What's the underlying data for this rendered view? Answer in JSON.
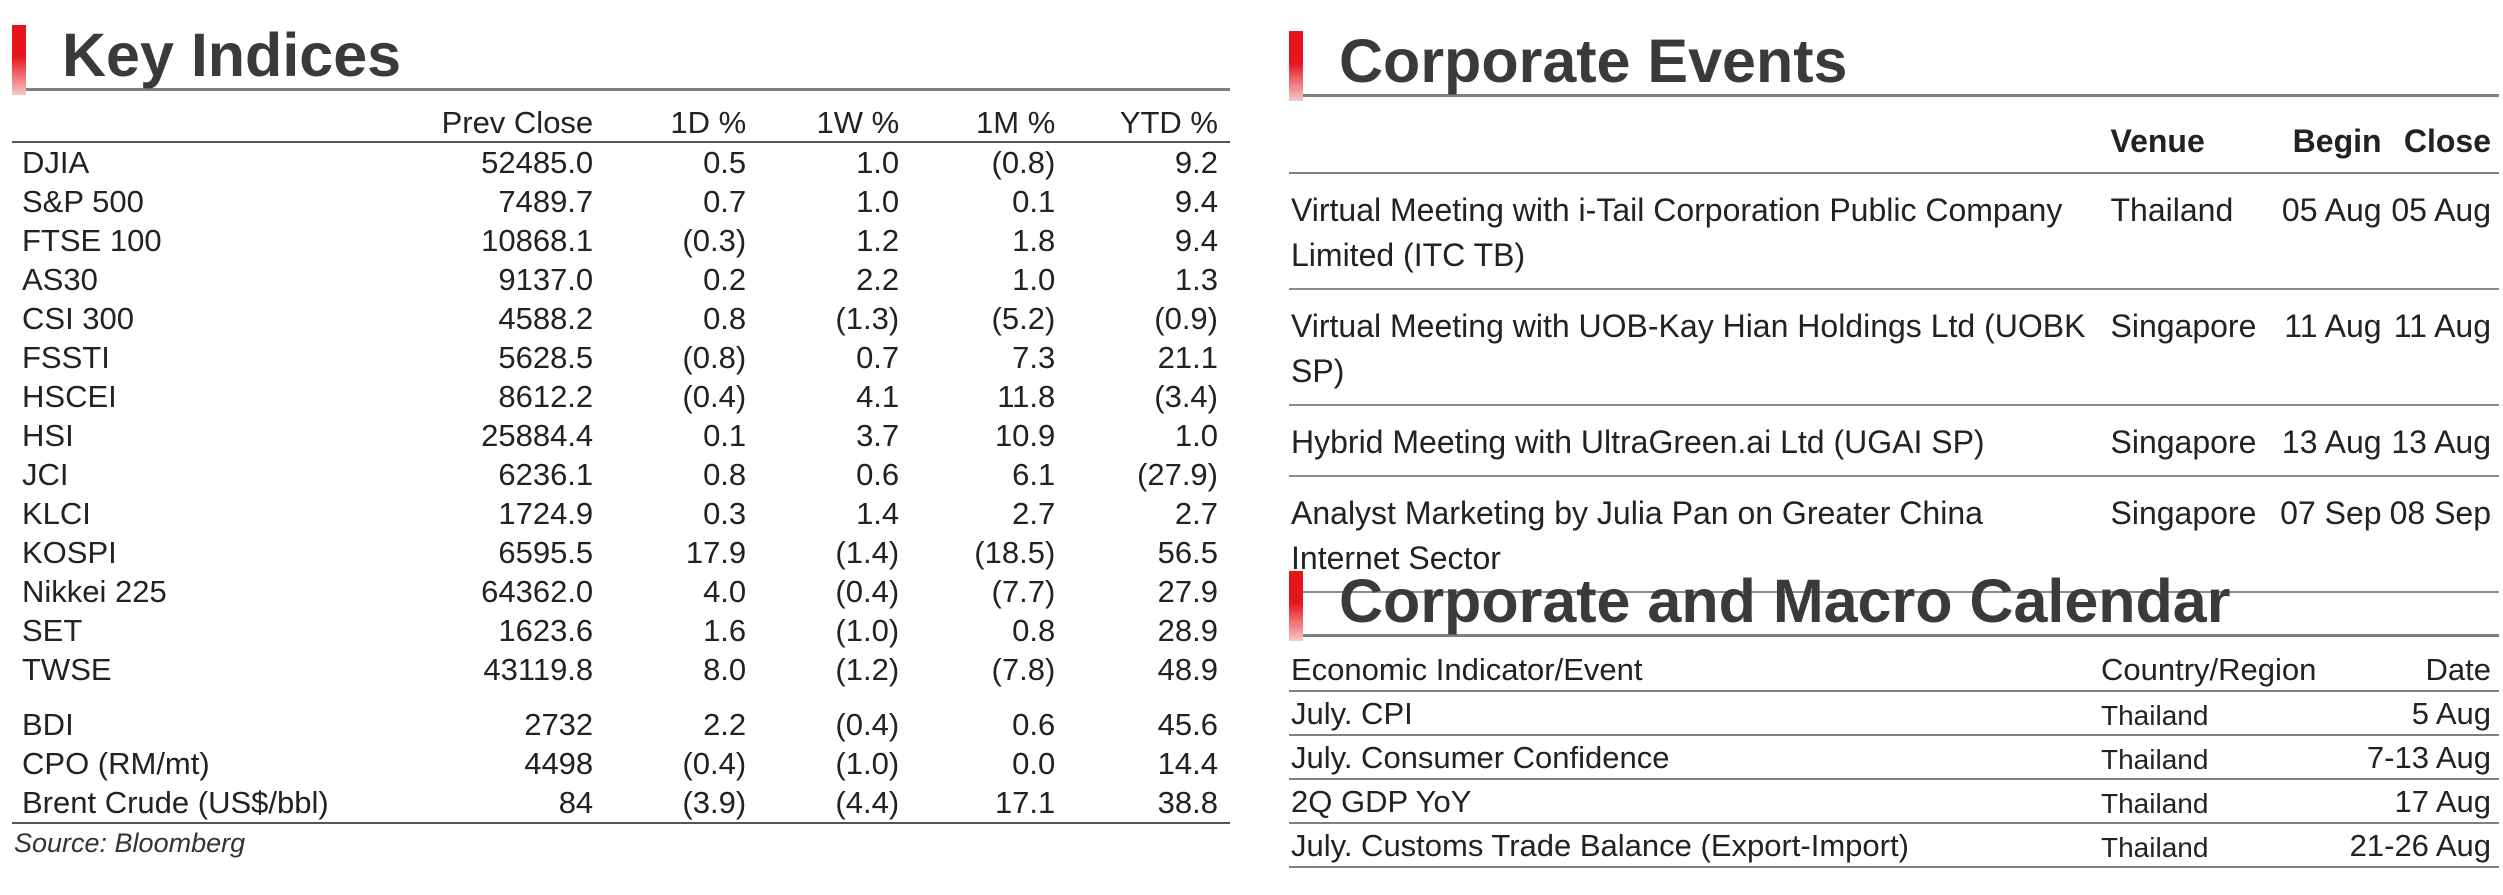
{
  "key_indices": {
    "title": "Key Indices",
    "columns": [
      "",
      "Prev Close",
      "1D %",
      "1W %",
      "1M %",
      "YTD %"
    ],
    "rows": [
      {
        "name": "DJIA",
        "prev_close": "52485.0",
        "d1": "0.5",
        "w1": "1.0",
        "m1": "(0.8)",
        "ytd": "9.2"
      },
      {
        "name": "S&P 500",
        "prev_close": "7489.7",
        "d1": "0.7",
        "w1": "1.0",
        "m1": "0.1",
        "ytd": "9.4"
      },
      {
        "name": "FTSE 100",
        "prev_close": "10868.1",
        "d1": "(0.3)",
        "w1": "1.2",
        "m1": "1.8",
        "ytd": "9.4"
      },
      {
        "name": "AS30",
        "prev_close": "9137.0",
        "d1": "0.2",
        "w1": "2.2",
        "m1": "1.0",
        "ytd": "1.3"
      },
      {
        "name": "CSI 300",
        "prev_close": "4588.2",
        "d1": "0.8",
        "w1": "(1.3)",
        "m1": "(5.2)",
        "ytd": "(0.9)"
      },
      {
        "name": "FSSTI",
        "prev_close": "5628.5",
        "d1": "(0.8)",
        "w1": "0.7",
        "m1": "7.3",
        "ytd": "21.1"
      },
      {
        "name": "HSCEI",
        "prev_close": "8612.2",
        "d1": "(0.4)",
        "w1": "4.1",
        "m1": "11.8",
        "ytd": "(3.4)"
      },
      {
        "name": "HSI",
        "prev_close": "25884.4",
        "d1": "0.1",
        "w1": "3.7",
        "m1": "10.9",
        "ytd": "1.0"
      },
      {
        "name": "JCI",
        "prev_close": "6236.1",
        "d1": "0.8",
        "w1": "0.6",
        "m1": "6.1",
        "ytd": "(27.9)"
      },
      {
        "name": "KLCI",
        "prev_close": "1724.9",
        "d1": "0.3",
        "w1": "1.4",
        "m1": "2.7",
        "ytd": "2.7"
      },
      {
        "name": "KOSPI",
        "prev_close": "6595.5",
        "d1": "17.9",
        "w1": "(1.4)",
        "m1": "(18.5)",
        "ytd": "56.5"
      },
      {
        "name": "Nikkei 225",
        "prev_close": "64362.0",
        "d1": "4.0",
        "w1": "(0.4)",
        "m1": "(7.7)",
        "ytd": "27.9"
      },
      {
        "name": "SET",
        "prev_close": "1623.6",
        "d1": "1.6",
        "w1": "(1.0)",
        "m1": "0.8",
        "ytd": "28.9"
      },
      {
        "name": "TWSE",
        "prev_close": "43119.8",
        "d1": "8.0",
        "w1": "(1.2)",
        "m1": "(7.8)",
        "ytd": "48.9"
      },
      {
        "name": "BDI",
        "prev_close": "2732",
        "d1": "2.2",
        "w1": "(0.4)",
        "m1": "0.6",
        "ytd": "45.6"
      },
      {
        "name": "CPO (RM/mt)",
        "prev_close": "4498",
        "d1": "(0.4)",
        "w1": "(1.0)",
        "m1": "0.0",
        "ytd": "14.4"
      },
      {
        "name": "Brent Crude (US$/bbl)",
        "prev_close": "84",
        "d1": "(3.9)",
        "w1": "(4.4)",
        "m1": "17.1",
        "ytd": "38.8"
      }
    ],
    "source": "Source: Bloomberg"
  },
  "corporate_events": {
    "title": "Corporate Events",
    "columns": [
      "",
      "Venue",
      "Begin",
      "Close"
    ],
    "rows": [
      {
        "event": "Virtual Meeting with i-Tail Corporation Public Company Limited (ITC TB)",
        "venue": "Thailand",
        "begin": "05 Aug",
        "close": "05 Aug"
      },
      {
        "event": "Virtual Meeting with UOB-Kay Hian Holdings Ltd (UOBK SP)",
        "venue": "Singapore",
        "begin": "11 Aug",
        "close": "11 Aug"
      },
      {
        "event": "Hybrid Meeting with UltraGreen.ai Ltd (UGAI SP)",
        "venue": "Singapore",
        "begin": "13 Aug",
        "close": "13 Aug"
      },
      {
        "event": "Analyst Marketing by Julia Pan on Greater China Internet Sector",
        "venue": "Singapore",
        "begin": "07 Sep",
        "close": "08 Sep"
      }
    ]
  },
  "calendar": {
    "title": "Corporate and Macro Calendar",
    "columns": [
      "Economic Indicator/Event",
      "Country/Region",
      "Date"
    ],
    "rows": [
      {
        "event": "July. CPI",
        "country": "Thailand",
        "date": "5 Aug"
      },
      {
        "event": "July. Consumer Confidence",
        "country": "Thailand",
        "date": "7-13 Aug"
      },
      {
        "event": "2Q GDP YoY",
        "country": "Thailand",
        "date": "17 Aug"
      },
      {
        "event": "July. Customs Trade Balance (Export-Import)",
        "country": "Thailand",
        "date": "21-26 Aug"
      }
    ]
  },
  "colors": {
    "accent": "#e8141c",
    "title_text": "#3a3a3a",
    "rule": "#7f7f7f"
  }
}
